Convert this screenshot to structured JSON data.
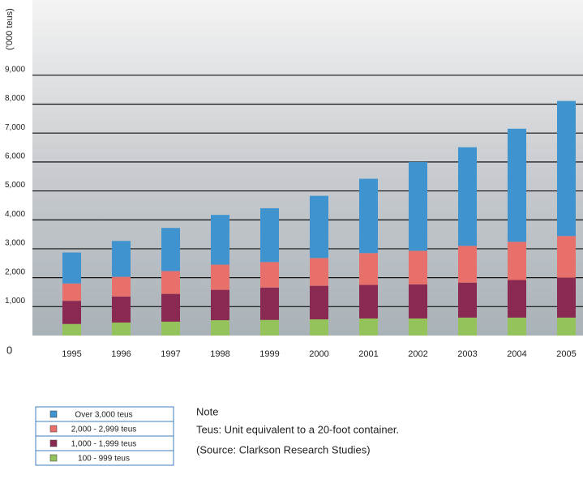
{
  "chart_data": {
    "type": "stacked_bar",
    "y_label": "('000 teus)",
    "categories": [
      "1995",
      "1996",
      "1997",
      "1998",
      "1999",
      "2000",
      "2001",
      "2002",
      "2003",
      "2004",
      "2005"
    ],
    "series": [
      {
        "name": "100 - 999 teus",
        "color": "#93c35a",
        "values": [
          400,
          450,
          480,
          530,
          540,
          560,
          590,
          590,
          620,
          620,
          620
        ]
      },
      {
        "name": "1,000 - 1,999 teus",
        "color": "#8a2a52",
        "values": [
          800,
          900,
          960,
          1050,
          1120,
          1160,
          1160,
          1180,
          1210,
          1300,
          1380
        ]
      },
      {
        "name": "2,000 - 2,999 teus",
        "color": "#e8706a",
        "values": [
          600,
          680,
          790,
          870,
          880,
          960,
          1100,
          1160,
          1270,
          1320,
          1440
        ]
      },
      {
        "name": "Over 3,000 teus",
        "color": "#3f94cf",
        "values": [
          1070,
          1240,
          1490,
          1720,
          1860,
          2150,
          2570,
          3070,
          3410,
          3910,
          4670
        ]
      }
    ],
    "ylim": [
      0,
      11600
    ],
    "yticks": [
      0,
      {
        "value": 1000,
        "label": "1,000"
      },
      {
        "value": 2000,
        "label": "2,000"
      },
      {
        "value": 3000,
        "label": "3,000"
      },
      {
        "value": 4000,
        "label": "4,000"
      },
      {
        "value": 5000,
        "label": "5,000"
      },
      {
        "value": 6000,
        "label": "6,000"
      },
      {
        "value": 7000,
        "label": "7,000"
      },
      {
        "value": 8000,
        "label": "8,000"
      },
      {
        "value": 9000,
        "label": "9,000"
      }
    ],
    "grid": true,
    "note_title": "Note",
    "note": "Teus: Unit equivalent to a 20-foot container.",
    "source": "(Source: Clarkson Research Studies)"
  }
}
